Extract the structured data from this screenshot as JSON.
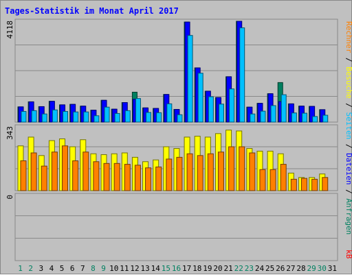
{
  "chart_data": [
    {
      "type": "bar",
      "title": "Tages-Statistik im Monat April 2017",
      "panel": "top",
      "ymax_label": "4118",
      "categories": [
        "1",
        "2",
        "3",
        "4",
        "5",
        "6",
        "7",
        "8",
        "9",
        "10",
        "11",
        "12",
        "13",
        "14",
        "15",
        "16",
        "17",
        "18",
        "19",
        "20",
        "21",
        "22",
        "23",
        "24",
        "25",
        "26",
        "27",
        "28",
        "29",
        "30",
        "31"
      ],
      "weekend_days": [
        "1",
        "2",
        "8",
        "9",
        "15",
        "16",
        "22",
        "23",
        "29",
        "30"
      ],
      "series": [
        {
          "name": "Anfragen",
          "color": "#008060",
          "values": [
            600,
            800,
            610,
            820,
            680,
            700,
            630,
            470,
            860,
            510,
            770,
            1180,
            560,
            540,
            1090,
            500,
            3950,
            2140,
            1220,
            970,
            1790,
            3980,
            590,
            740,
            1120,
            1560,
            720,
            630,
            620,
            490,
            0
          ]
        },
        {
          "name": "Dateien",
          "color": "#0000ff",
          "values": [
            600,
            800,
            610,
            820,
            680,
            700,
            630,
            470,
            860,
            510,
            770,
            900,
            560,
            540,
            1090,
            500,
            3950,
            2140,
            1220,
            970,
            1790,
            3980,
            590,
            740,
            1120,
            810,
            720,
            630,
            620,
            490,
            0
          ]
        },
        {
          "name": "Seiten",
          "color": "#00c0ff",
          "values": [
            420,
            450,
            320,
            480,
            420,
            400,
            400,
            250,
            590,
            340,
            450,
            930,
            380,
            370,
            720,
            290,
            3420,
            1930,
            1000,
            710,
            1310,
            3720,
            320,
            430,
            650,
            1080,
            360,
            350,
            220,
            270,
            0
          ]
        }
      ]
    },
    {
      "type": "bar",
      "panel": "middle",
      "ymax_label": "343",
      "categories": [
        "1",
        "2",
        "3",
        "4",
        "5",
        "6",
        "7",
        "8",
        "9",
        "10",
        "11",
        "12",
        "13",
        "14",
        "15",
        "16",
        "17",
        "18",
        "19",
        "20",
        "21",
        "22",
        "23",
        "24",
        "25",
        "26",
        "27",
        "28",
        "29",
        "30",
        "31"
      ],
      "series": [
        {
          "name": "Besuche",
          "color": "#ffff00",
          "values": [
            255,
            305,
            200,
            285,
            295,
            250,
            290,
            210,
            205,
            210,
            215,
            190,
            165,
            175,
            250,
            240,
            305,
            310,
            305,
            325,
            345,
            340,
            240,
            225,
            225,
            210,
            100,
            75,
            75,
            95,
            0
          ]
        },
        {
          "name": "Rechner",
          "color": "#ff8000",
          "values": [
            170,
            215,
            140,
            220,
            255,
            170,
            220,
            165,
            155,
            155,
            150,
            145,
            130,
            135,
            180,
            190,
            210,
            200,
            210,
            220,
            250,
            250,
            215,
            120,
            120,
            150,
            65,
            70,
            65,
            75,
            0
          ]
        }
      ]
    },
    {
      "type": "bar",
      "panel": "bottom",
      "ymax_label": "0",
      "categories": [
        "1",
        "2",
        "3",
        "4",
        "5",
        "6",
        "7",
        "8",
        "9",
        "10",
        "11",
        "12",
        "13",
        "14",
        "15",
        "16",
        "17",
        "18",
        "19",
        "20",
        "21",
        "22",
        "23",
        "24",
        "25",
        "26",
        "27",
        "28",
        "29",
        "30",
        "31"
      ],
      "series": [
        {
          "name": "kB",
          "color": "#ff0000",
          "values": [
            0,
            0,
            0,
            0,
            0,
            0,
            0,
            0,
            0,
            0,
            0,
            0,
            0,
            0,
            0,
            0,
            0,
            0,
            0,
            0,
            0,
            0,
            0,
            0,
            0,
            0,
            0,
            0,
            0,
            0,
            0
          ]
        }
      ]
    }
  ],
  "right_legend": [
    {
      "text": "Anfragen",
      "color": "#008060"
    },
    {
      "text": " / ",
      "color": "#000000"
    },
    {
      "text": "Dateien",
      "color": "#0000ff"
    },
    {
      "text": " / ",
      "color": "#000000"
    },
    {
      "text": "Seiten",
      "color": "#00c0ff"
    },
    {
      "text": " / ",
      "color": "#000000"
    },
    {
      "text": "Besuche",
      "color": "#ffff00"
    },
    {
      "text": " / ",
      "color": "#000000"
    },
    {
      "text": "Rechner",
      "color": "#ff8000"
    }
  ],
  "right_legend_bottom": {
    "text": "kB",
    "color": "#ff0000"
  },
  "colors": {
    "weekday": "#000000",
    "weekend": "#008060",
    "frame": "#c0c0c0",
    "plot": "#c0c0c0"
  }
}
